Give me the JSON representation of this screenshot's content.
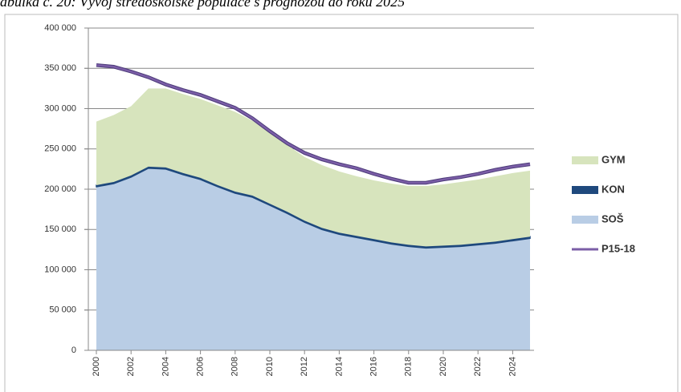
{
  "chart_data": {
    "type": "stacked_area",
    "title": "abulka č. 20: Vývoj středoškolské populace s prognózou do roku 2025",
    "x": [
      2000,
      2001,
      2002,
      2003,
      2004,
      2005,
      2006,
      2007,
      2008,
      2009,
      2010,
      2011,
      2012,
      2013,
      2014,
      2015,
      2016,
      2017,
      2018,
      2019,
      2020,
      2021,
      2022,
      2023,
      2024,
      2025
    ],
    "xlim": [
      2000,
      2025
    ],
    "xticks": [
      2000,
      2002,
      2004,
      2006,
      2008,
      2010,
      2012,
      2014,
      2016,
      2018,
      2020,
      2022,
      2024
    ],
    "ylim": [
      0,
      400000
    ],
    "yticks": [
      0,
      {
        "value": 50000,
        "label": "50 000"
      },
      {
        "value": 100000,
        "label": "100 000"
      },
      {
        "value": 150000,
        "label": "150 000"
      },
      {
        "value": 200000,
        "label": "200 000"
      },
      {
        "value": 250000,
        "label": "250 000"
      },
      {
        "value": 300000,
        "label": "300 000"
      },
      {
        "value": 350000,
        "label": "350 000"
      },
      {
        "value": 400000,
        "label": "400 000"
      }
    ],
    "grid": true,
    "legend": "right",
    "series": [
      {
        "name": "SOŠ",
        "color": "#b9cde5",
        "kind": "area",
        "values": [
          203000,
          207000,
          215000,
          226000,
          225000,
          218000,
          212000,
          203000,
          195000,
          190000,
          180000,
          170000,
          159000,
          150000,
          144000,
          140000,
          136000,
          132000,
          129000,
          127000,
          128000,
          129000,
          131000,
          133000,
          136000,
          139000
        ]
      },
      {
        "name": "KON",
        "color": "#1f497d",
        "kind": "area",
        "values": [
          2000,
          2000,
          2000,
          2000,
          2000,
          2000,
          2000,
          2000,
          2000,
          2000,
          2000,
          2000,
          2000,
          2000,
          2000,
          2000,
          2000,
          2000,
          2000,
          2000,
          2000,
          2000,
          2000,
          2000,
          2000,
          2000
        ]
      },
      {
        "name": "GYM",
        "color": "#d7e4bd",
        "kind": "area",
        "values": [
          79000,
          83000,
          86000,
          97000,
          98000,
          98000,
          98000,
          99000,
          99000,
          93000,
          88000,
          83000,
          79000,
          78000,
          76000,
          74000,
          73000,
          73000,
          73000,
          75000,
          76000,
          78000,
          79000,
          81000,
          82000,
          82000
        ]
      },
      {
        "name": "P15-18",
        "color": "#7b5ea7",
        "kind": "line",
        "values": [
          354000,
          352000,
          346000,
          339000,
          330000,
          323000,
          317000,
          309000,
          301000,
          288000,
          272000,
          257000,
          245000,
          237000,
          231000,
          226000,
          219000,
          213000,
          208000,
          208000,
          212000,
          215000,
          219000,
          224000,
          228000,
          231000
        ]
      }
    ]
  }
}
